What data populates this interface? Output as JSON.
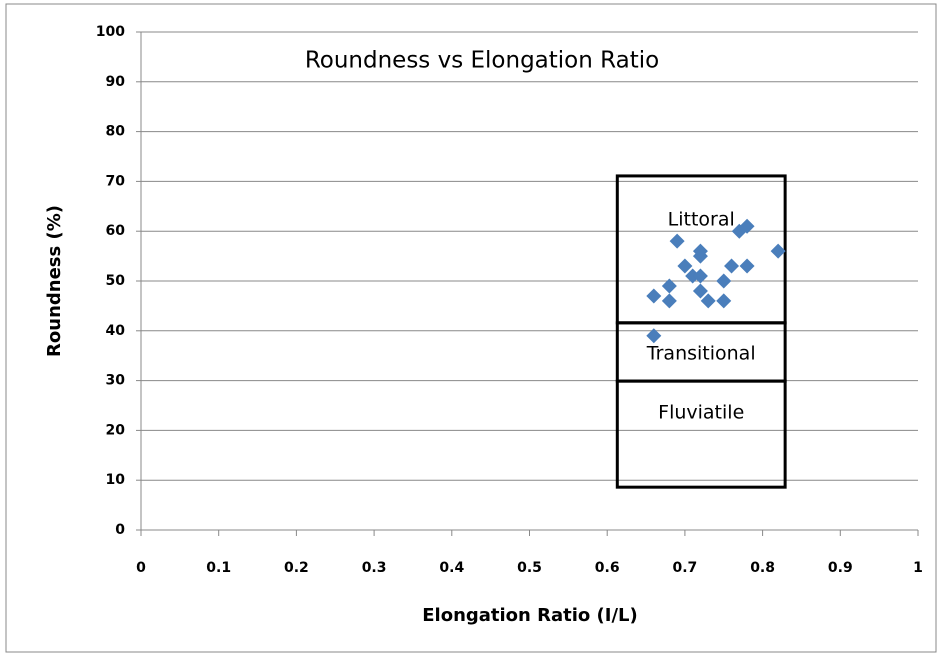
{
  "chart_data": {
    "type": "scatter",
    "title": "Roundness vs Elongation Ratio",
    "x_label": "Elongation Ratio  (I/L)",
    "y_label": "Roundness (%)",
    "x": [
      0.66,
      0.66,
      0.68,
      0.68,
      0.69,
      0.7,
      0.71,
      0.72,
      0.72,
      0.72,
      0.72,
      0.73,
      0.75,
      0.75,
      0.76,
      0.77,
      0.78,
      0.78,
      0.82
    ],
    "values": [
      39,
      47,
      46,
      49,
      58,
      53,
      51,
      55,
      56,
      51,
      48,
      46,
      50,
      46,
      53,
      60,
      61,
      53,
      56
    ],
    "color": "#4a7ebb",
    "xlim": [
      0,
      1
    ],
    "xticks": [
      0,
      0.1,
      0.2,
      0.3,
      0.4,
      0.5,
      0.6,
      0.7,
      0.8,
      0.9,
      1
    ],
    "ylim": [
      0,
      100
    ],
    "yticks": [
      0,
      10,
      20,
      30,
      40,
      50,
      60,
      70,
      80,
      90,
      100
    ],
    "grid": true,
    "region_xlim": [
      0.613,
      0.829
    ],
    "regions": [
      {
        "label": "Littoral",
        "ylim": [
          41.6,
          71.1
        ]
      },
      {
        "label": "Transitional",
        "ylim": [
          29.9,
          41.6
        ]
      },
      {
        "label": "Fluviatile",
        "ylim": [
          8.6,
          29.9
        ]
      }
    ]
  }
}
